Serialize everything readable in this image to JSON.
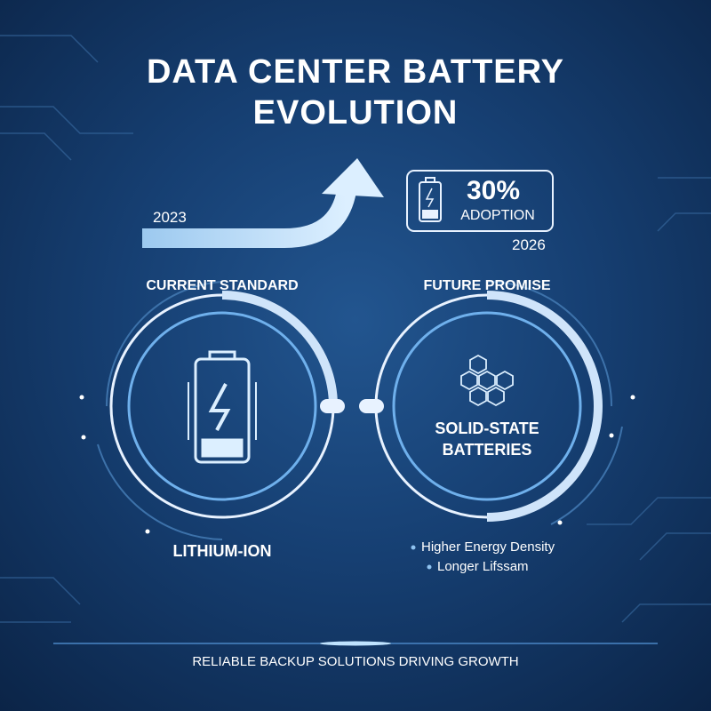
{
  "header": {
    "title": "DATA CENTER BATTERY EVOLUTION"
  },
  "timeline": {
    "start": "2023",
    "end": "2026",
    "stat": "30%",
    "stat_label": "ADOPTION"
  },
  "current": {
    "heading": "CURRENT STANDARD",
    "name": "LITHIUM-ION"
  },
  "future": {
    "heading": "FUTURE PROMISE",
    "name": "SOLID-STATE BATTERIES",
    "benefits": [
      "Higher Energy Density",
      "Longer Lifssam"
    ]
  },
  "footer": {
    "text": "RELIABLE BACKUP SOLUTIONS DRIVING GROWTH"
  }
}
